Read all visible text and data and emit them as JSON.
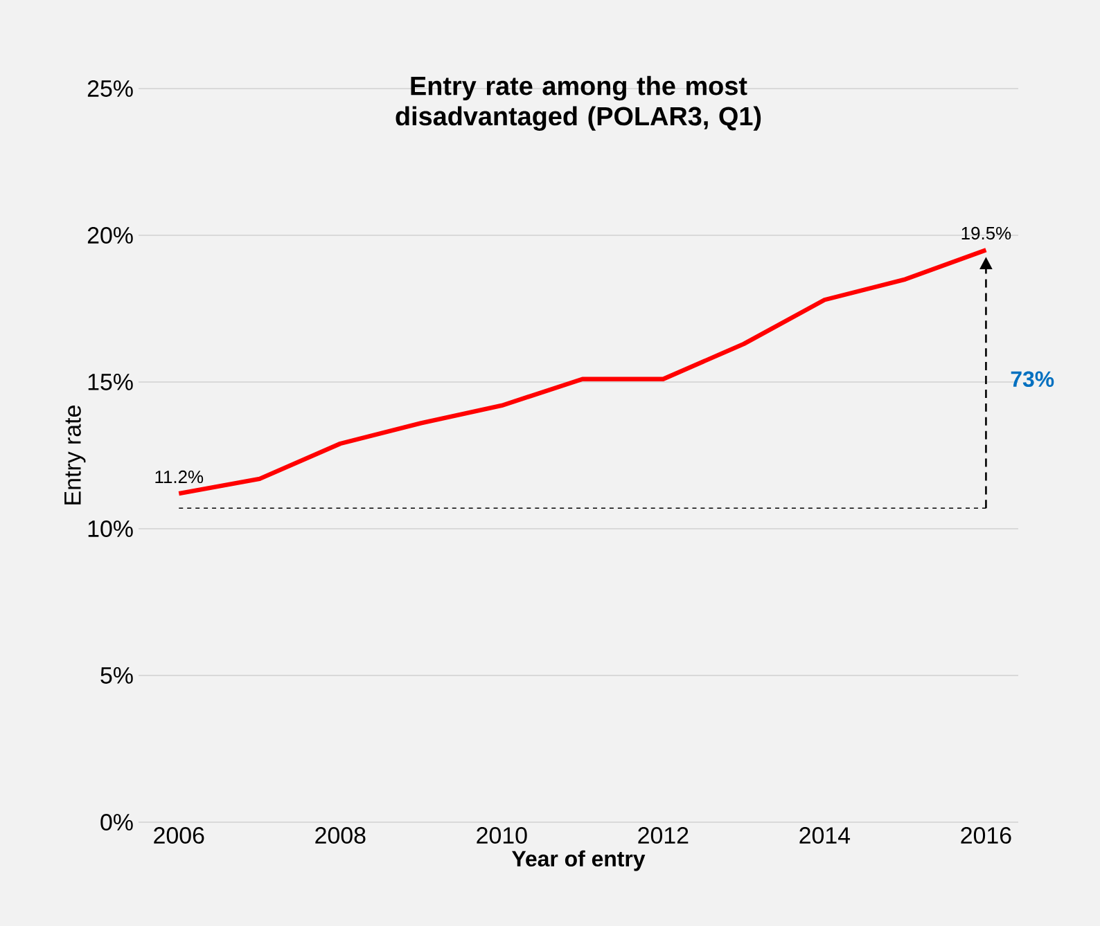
{
  "chart_data": {
    "type": "line",
    "title": "Entry rate among the most disadvantaged (POLAR3, Q1)",
    "xlabel": "Year of entry",
    "ylabel": "Entry rate",
    "x": [
      2006,
      2007,
      2008,
      2009,
      2010,
      2011,
      2012,
      2013,
      2014,
      2015,
      2016
    ],
    "series": [
      {
        "color": "#ff0000",
        "values": [
          11.2,
          11.7,
          12.9,
          13.6,
          14.2,
          15.1,
          15.1,
          16.3,
          17.8,
          18.5,
          19.5
        ],
        "value_labels": [
          "11.2%",
          null,
          null,
          null,
          null,
          null,
          null,
          null,
          null,
          null,
          "19.5%"
        ]
      }
    ],
    "xlim": [
      2005.5,
      2016.4
    ],
    "ylim": [
      0,
      25
    ],
    "xticks": [
      2006,
      2008,
      2010,
      2012,
      2014,
      2016
    ],
    "yticks": [
      {
        "value": 0,
        "label": "0%"
      },
      {
        "value": 5,
        "label": "5%"
      },
      {
        "value": 10,
        "label": "10%"
      },
      {
        "value": 15,
        "label": "15%"
      },
      {
        "value": 20,
        "label": "20%"
      },
      {
        "value": 25,
        "label": "25%"
      }
    ],
    "grid": "y",
    "marker": "none",
    "line_style": "solid",
    "ref_lines": [
      {
        "axis": "y",
        "value": 10.7,
        "line_style": "dashed",
        "color": "#000000"
      }
    ],
    "annotations": [
      "73%"
    ]
  }
}
